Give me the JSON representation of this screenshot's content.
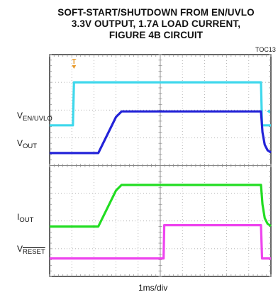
{
  "chart_data": {
    "type": "line",
    "title": "SOFT-START/SHUTDOWN FROM EN/UVLO 3.3V OUTPUT, 1.7A LOAD CURRENT, FIGURE 4B CIRCUIT",
    "title_lines": [
      "SOFT-START/SHUTDOWN FROM EN/UVLO",
      "3.3V OUTPUT, 1.7A LOAD CURRENT,",
      "FIGURE 4B CIRCUIT"
    ],
    "figure_id": "TOC13",
    "xlabel": "1ms/div",
    "x_divisions": 10,
    "y_divisions": 8,
    "xlim": [
      0,
      10
    ],
    "ylim": [
      0,
      8
    ],
    "grid": true,
    "trigger_marker": "T",
    "series": [
      {
        "name": "VEN/UVLO",
        "label": {
          "main": "V",
          "sub": "EN/UVLO"
        },
        "color": "#3fd8ec",
        "x": [
          0,
          1.05,
          1.1,
          9.55,
          9.6,
          10
        ],
        "y": [
          5.45,
          5.45,
          7.0,
          7.0,
          5.45,
          5.45
        ]
      },
      {
        "name": "VOUT",
        "label": {
          "main": "V",
          "sub": "OUT"
        },
        "color": "#2323d8",
        "x": [
          0,
          2.2,
          3.0,
          3.25,
          9.55,
          9.62,
          9.72,
          9.85,
          10
        ],
        "y": [
          4.45,
          4.45,
          5.75,
          5.95,
          5.95,
          5.2,
          4.75,
          4.55,
          4.47
        ]
      },
      {
        "name": "IOUT",
        "label": {
          "main": "I",
          "sub": "OUT"
        },
        "color": "#22dd22",
        "x": [
          0,
          2.2,
          3.0,
          3.25,
          9.55,
          9.62,
          9.72,
          9.85,
          10
        ],
        "y": [
          1.8,
          1.8,
          3.1,
          3.3,
          3.3,
          2.6,
          2.1,
          1.9,
          1.82
        ]
      },
      {
        "name": "VRESET",
        "label": {
          "main": "V",
          "sub": "RESET"
        },
        "color": "#ee44ee",
        "x": [
          0,
          5.15,
          5.18,
          9.55,
          9.6,
          10
        ],
        "y": [
          0.65,
          0.65,
          1.85,
          1.85,
          0.65,
          0.65
        ]
      }
    ]
  }
}
